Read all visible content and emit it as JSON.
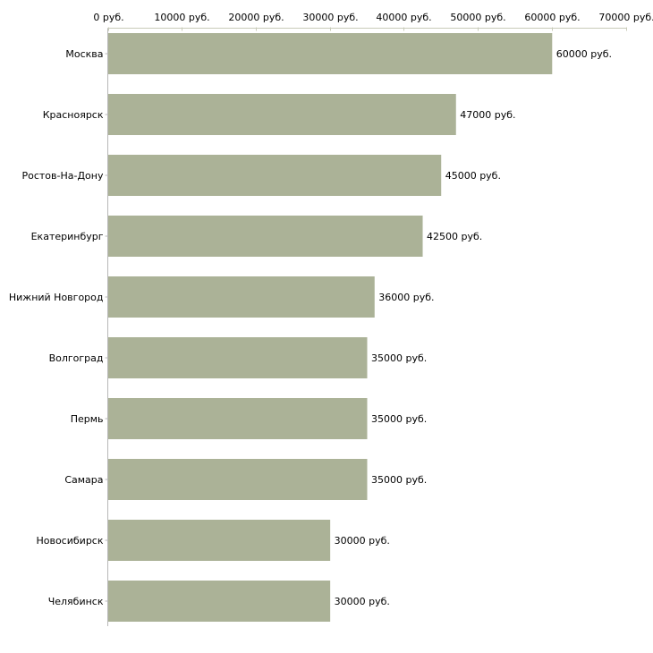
{
  "chart_data": {
    "type": "bar",
    "orientation": "horizontal",
    "title": "",
    "xlabel": "",
    "ylabel": "",
    "categories": [
      "Москва",
      "Красноярск",
      "Ростов-На-Дону",
      "Екатеринбург",
      "Нижний Новгород",
      "Волгоград",
      "Пермь",
      "Самара",
      "Новосибирск",
      "Челябинск"
    ],
    "values": [
      60000,
      47000,
      45000,
      42500,
      36000,
      35000,
      35000,
      35000,
      30000,
      30000
    ],
    "value_labels": [
      "60000 руб.",
      "47000 руб.",
      "45000 руб.",
      "42500 руб.",
      "36000 руб.",
      "35000 руб.",
      "35000 руб.",
      "35000 руб.",
      "30000 руб.",
      "30000 руб."
    ],
    "xlim": [
      0,
      70000
    ],
    "x_ticks": [
      0,
      10000,
      20000,
      30000,
      40000,
      50000,
      60000,
      70000
    ],
    "x_tick_labels": [
      "0 руб.",
      "10000 руб.",
      "20000 руб.",
      "30000 руб.",
      "40000 руб.",
      "50000 руб.",
      "60000 руб.",
      "70000 руб."
    ],
    "x_axis_position": "top",
    "grid": false,
    "bar_color": "#abb297",
    "axis_color": "#c8cbb8"
  }
}
